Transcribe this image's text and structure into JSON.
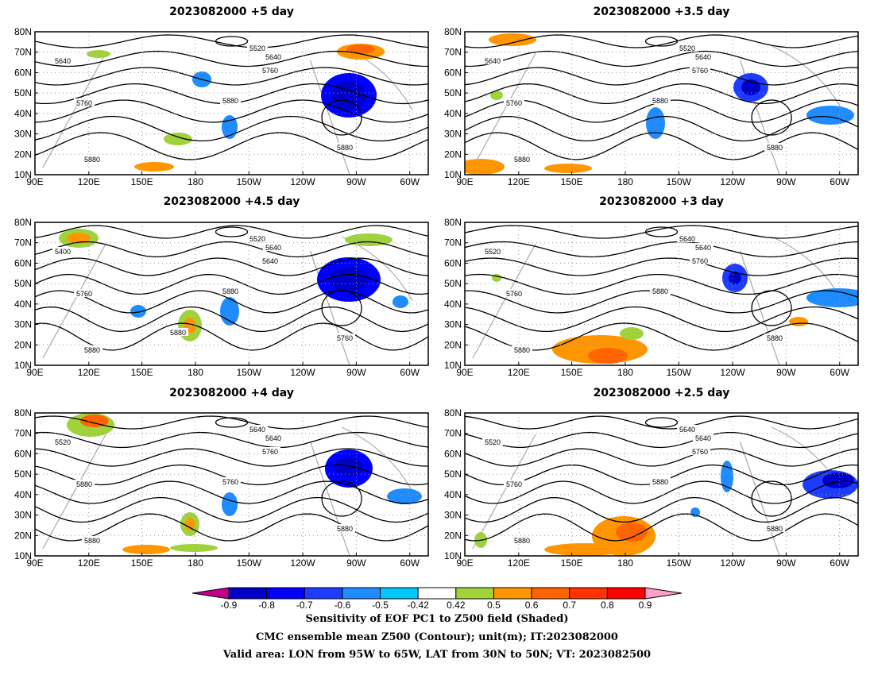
{
  "panels": [
    {
      "title": "2023082000  +5 day",
      "labels": [
        "5640",
        "5520",
        "5640",
        "5760",
        "5760",
        "5880",
        "5880",
        "5880"
      ]
    },
    {
      "title": "2023082000  +3.5 day",
      "labels": [
        "5640",
        "5520",
        "5640",
        "5760",
        "5760",
        "5880",
        "5880",
        "5880"
      ]
    },
    {
      "title": "2023082000  +4.5 day",
      "labels": [
        "5400",
        "5520",
        "5640",
        "5640",
        "5760",
        "5880",
        "5760",
        "5880",
        "5880"
      ]
    },
    {
      "title": "2023082000  +3 day",
      "labels": [
        "5520",
        "5640",
        "5640",
        "5760",
        "5760",
        "5880",
        "5880",
        "5880"
      ]
    },
    {
      "title": "2023082000  +4 day",
      "labels": [
        "5520",
        "5640",
        "5640",
        "5760",
        "5880",
        "5760",
        "5880",
        "5880"
      ]
    },
    {
      "title": "2023082000  +2.5 day",
      "labels": [
        "5520",
        "5640",
        "5640",
        "5760",
        "5760",
        "5880",
        "5880",
        "5880"
      ]
    }
  ],
  "axes": {
    "lat_labels": [
      "80N",
      "70N",
      "60N",
      "50N",
      "40N",
      "30N",
      "20N",
      "10N"
    ],
    "lon_labels": [
      "90E",
      "120E",
      "150E",
      "180",
      "150W",
      "120W",
      "90W",
      "60W"
    ]
  },
  "colorbar": {
    "ticks": [
      "-0.9",
      "-0.8",
      "-0.7",
      "-0.6",
      "-0.5",
      "-0.42",
      "0.42",
      "0.5",
      "0.6",
      "0.7",
      "0.8",
      "0.9"
    ],
    "colors": [
      "#c0008c",
      "#0000c8",
      "#0000ff",
      "#1e3cff",
      "#1e8cff",
      "#00c8ff",
      "#ffffff",
      "#a0d23c",
      "#ff9600",
      "#ff6400",
      "#ff3200",
      "#ff0000",
      "#ff9ec8"
    ]
  },
  "caption": {
    "line1": "Sensitivity of EOF PC1 to Z500 field (Shaded)",
    "line2": "CMC ensemble mean Z500 (Contour); unit(m); IT:2023082000",
    "line3": "Valid area: LON from 95W to 65W, LAT from 30N to 50N; VT: 2023082500"
  }
}
